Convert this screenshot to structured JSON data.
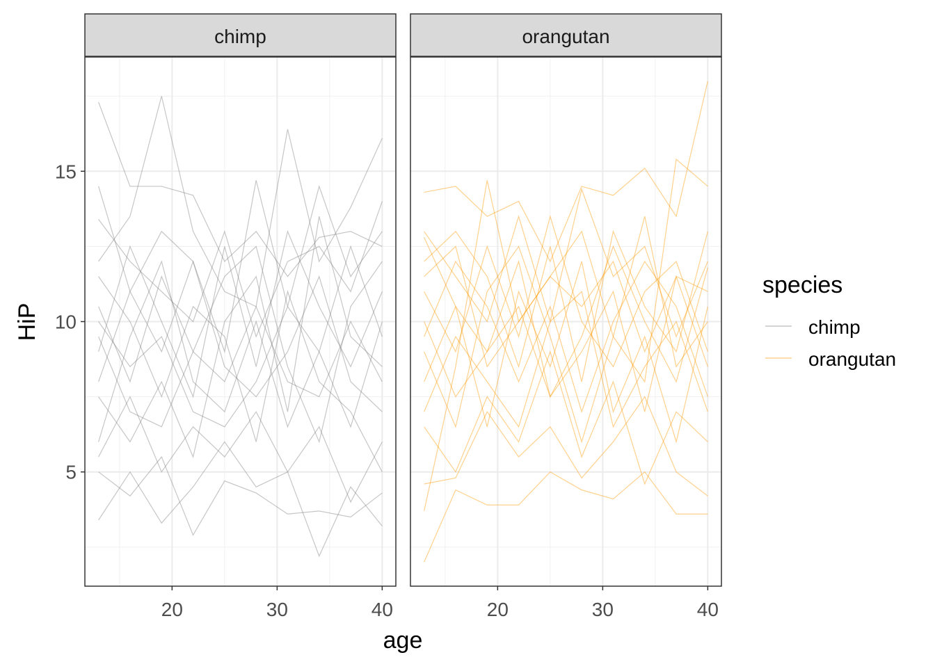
{
  "chart_data": {
    "type": "line",
    "xlabel": "age",
    "ylabel": "HiP",
    "xlim": [
      11.7,
      41.3
    ],
    "ylim": [
      1.2,
      18.8
    ],
    "x_ticks": [
      20,
      30,
      40
    ],
    "y_ticks": [
      5,
      10,
      15
    ],
    "x_tick_labels": [
      "20",
      "30",
      "40"
    ],
    "y_tick_labels": [
      "5",
      "10",
      "15"
    ],
    "grid": true,
    "x": [
      13,
      16,
      19,
      22,
      25,
      28,
      31,
      34,
      37,
      40
    ],
    "legend": {
      "title": "species",
      "placement": "right",
      "entries": [
        {
          "label": "chimp",
          "color": "#808080"
        },
        {
          "label": "orangutan",
          "color": "#FF9900"
        }
      ]
    },
    "panels": [
      {
        "label": "chimp",
        "color": "#808080",
        "series": [
          [
            17.3,
            14.5,
            14.5,
            14.2,
            12.0,
            13.0,
            11.5,
            12.8,
            13.0,
            12.5
          ],
          [
            12.0,
            13.5,
            17.5,
            13.0,
            11.0,
            10.5,
            16.4,
            12.0,
            13.8,
            16.1
          ],
          [
            3.4,
            5.0,
            3.3,
            4.5,
            6.0,
            4.5,
            5.0,
            2.2,
            4.5,
            3.2
          ],
          [
            10.0,
            8.5,
            9.5,
            7.0,
            6.5,
            8.0,
            10.5,
            9.0,
            6.5,
            10.0
          ],
          [
            5.0,
            4.2,
            5.5,
            2.9,
            4.7,
            4.3,
            3.6,
            3.7,
            3.5,
            4.3
          ],
          [
            13.4,
            12.0,
            11.0,
            10.0,
            13.0,
            9.5,
            12.0,
            12.5,
            11.0,
            14.0
          ],
          [
            8.0,
            11.0,
            9.0,
            12.0,
            8.5,
            7.5,
            9.0,
            11.5,
            8.0,
            7.0
          ],
          [
            9.5,
            7.0,
            6.5,
            9.0,
            11.5,
            12.5,
            8.5,
            6.0,
            10.5,
            12.0
          ],
          [
            6.0,
            9.5,
            12.0,
            8.0,
            7.0,
            10.0,
            6.5,
            9.0,
            12.5,
            9.5
          ],
          [
            11.5,
            10.0,
            7.5,
            10.5,
            9.5,
            6.0,
            11.0,
            8.0,
            7.0,
            5.0
          ],
          [
            7.5,
            6.0,
            8.0,
            5.5,
            10.0,
            11.5,
            7.0,
            13.5,
            9.5,
            8.5
          ],
          [
            14.5,
            11.0,
            13.0,
            12.0,
            9.0,
            14.7,
            10.5,
            14.5,
            11.5,
            13.0
          ],
          [
            9.0,
            12.5,
            10.0,
            7.5,
            12.5,
            8.5,
            13.0,
            10.5,
            8.5,
            11.0
          ],
          [
            5.5,
            7.5,
            5.0,
            6.5,
            5.5,
            7.0,
            5.0,
            6.5,
            4.0,
            6.0
          ],
          [
            10.5,
            8.0,
            11.5,
            9.0,
            8.0,
            10.5,
            8.0,
            7.5,
            10.0,
            8.0
          ]
        ]
      },
      {
        "label": "orangutan",
        "color": "#FF9900",
        "series": [
          [
            2.0,
            4.4,
            3.9,
            3.9,
            5.0,
            4.4,
            4.1,
            5.0,
            3.6,
            3.6
          ],
          [
            14.3,
            14.5,
            13.5,
            14.0,
            12.0,
            14.5,
            14.2,
            15.1,
            13.5,
            18.0
          ],
          [
            3.7,
            8.5,
            14.7,
            10.0,
            11.5,
            13.0,
            9.5,
            8.0,
            15.4,
            14.5
          ],
          [
            12.8,
            10.5,
            9.0,
            12.0,
            7.5,
            9.5,
            12.5,
            10.0,
            8.0,
            11.8
          ],
          [
            9.5,
            12.0,
            10.5,
            8.0,
            10.5,
            7.0,
            10.0,
            12.0,
            10.5,
            7.5
          ],
          [
            6.5,
            5.0,
            7.5,
            6.0,
            9.0,
            5.5,
            8.0,
            4.6,
            7.0,
            6.0
          ],
          [
            11.0,
            9.0,
            12.5,
            9.5,
            13.5,
            10.0,
            8.5,
            11.0,
            12.0,
            9.0
          ],
          [
            8.0,
            10.5,
            6.5,
            11.0,
            8.5,
            12.0,
            7.0,
            9.5,
            6.0,
            10.5
          ],
          [
            13.0,
            11.5,
            10.0,
            13.5,
            10.0,
            14.4,
            11.5,
            12.5,
            9.5,
            12.0
          ],
          [
            4.6,
            4.8,
            7.0,
            5.5,
            6.5,
            4.8,
            6.0,
            7.5,
            5.0,
            4.2
          ],
          [
            10.0,
            7.5,
            9.0,
            10.5,
            7.5,
            9.0,
            11.0,
            7.0,
            11.5,
            8.5
          ],
          [
            12.0,
            13.0,
            11.5,
            8.5,
            12.5,
            8.0,
            13.0,
            10.5,
            9.0,
            13.0
          ],
          [
            7.0,
            9.5,
            8.0,
            6.5,
            10.0,
            11.0,
            6.5,
            8.5,
            10.0,
            7.0
          ],
          [
            9.0,
            6.5,
            11.0,
            12.5,
            9.5,
            6.0,
            9.5,
            13.5,
            8.5,
            10.0
          ],
          [
            11.5,
            12.5,
            8.5,
            10.0,
            11.5,
            10.5,
            12.0,
            9.0,
            11.5,
            11.0
          ]
        ]
      }
    ]
  }
}
